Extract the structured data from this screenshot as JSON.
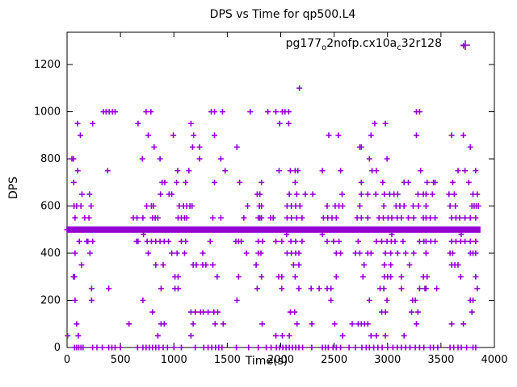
{
  "title": "DPS vs Time for qp500.L4",
  "legend": {
    "label_plain": "pg177_o2nofp.cx10a_c32r128",
    "label_parts": [
      {
        "text": "pg177"
      },
      {
        "text": "o",
        "sub": true
      },
      {
        "text": "2nofp.cx10a"
      },
      {
        "text": "c",
        "sub": true
      },
      {
        "text": "32r128"
      }
    ],
    "marker": "plus"
  },
  "axes": {
    "x": {
      "label": "Time(s)",
      "min": 0,
      "max": 4000,
      "ticks": [
        0,
        500,
        1000,
        1500,
        2000,
        2500,
        3000,
        3500,
        4000
      ]
    },
    "y": {
      "label": "DPS",
      "min": 0,
      "max": 1337,
      "ticks": [
        0,
        200,
        400,
        600,
        800,
        1000,
        1200
      ]
    }
  },
  "colors": {
    "marker": "#9400d3",
    "axis": "#000000",
    "text": "#000000",
    "background": "#ffffff"
  },
  "chart_data": {
    "type": "scatter",
    "title": "DPS vs Time for qp500.L4",
    "xlabel": "Time(s)",
    "ylabel": "DPS",
    "xlim": [
      0,
      4000
    ],
    "ylim": [
      0,
      1337
    ],
    "legend_entry": "pg177_o2nofp.cx10a_c32r128",
    "marker": "plus",
    "marker_color": "#9400d3",
    "grid": false,
    "band": {
      "dps": 500,
      "t_start": 0,
      "t_end": 3870,
      "texture_step": 40,
      "thickness_px": 8,
      "note": "dense horizontal band of overlapping + points at DPS ~500 spanning nearly the whole run"
    },
    "levels": [
      {
        "dps": 1280,
        "t": [
          3711
        ]
      },
      {
        "dps": 1100,
        "t": [
          2175
        ]
      },
      {
        "dps": 1000,
        "t": [
          340,
          365,
          395,
          425,
          450,
          740,
          785,
          1350,
          1380,
          1455,
          1715,
          1880,
          1955,
          2015,
          2040,
          2075,
          3270,
          3300
        ]
      },
      {
        "dps": 950,
        "t": [
          98,
          240,
          665,
          1160,
          1990,
          2075,
          2880,
          2980
        ]
      },
      {
        "dps": 900,
        "t": [
          125,
          760,
          995,
          1185,
          1380,
          2450,
          2540,
          2845,
          3270,
          3600,
          3710
        ]
      },
      {
        "dps": 850,
        "t": [
          815,
          1175,
          1240,
          1590,
          2740,
          2755,
          3775
        ]
      },
      {
        "dps": 800,
        "t": [
          45,
          60,
          705,
          870,
          1240,
          1440,
          2830,
          2995
        ]
      },
      {
        "dps": 750,
        "t": [
          100,
          380,
          1035,
          1140,
          1480,
          1985,
          2090,
          2135,
          2160,
          2390,
          2560,
          2855,
          2895,
          3310,
          3660,
          3725,
          3825
        ]
      },
      {
        "dps": 700,
        "t": [
          63,
          890,
          915,
          1025,
          1110,
          1380,
          1615,
          1820,
          2135,
          2755,
          2955,
          3155,
          3195,
          3370,
          3430,
          3445,
          3610,
          3760
        ]
      },
      {
        "dps": 650,
        "t": [
          140,
          210,
          875,
          955,
          980,
          1780,
          1805,
          2080,
          2150,
          2230,
          2300,
          2575,
          2755,
          2815,
          2890,
          2970,
          3020,
          3060,
          3095,
          3285,
          3335,
          3360,
          3420,
          3575,
          3625,
          3800,
          3840
        ]
      },
      {
        "dps": 600,
        "t": [
          65,
          90,
          130,
          225,
          745,
          790,
          810,
          1050,
          1090,
          1120,
          1150,
          1170,
          1690,
          1800,
          1820,
          2060,
          2100,
          2140,
          2180,
          2435,
          2510,
          2545,
          2580,
          2740,
          2965,
          3080,
          3115,
          3155,
          3240,
          3290,
          3360,
          3585,
          3635,
          3790,
          3810,
          3830,
          3850
        ]
      },
      {
        "dps": 550,
        "t": [
          75,
          165,
          205,
          620,
          655,
          710,
          800,
          825,
          850,
          1040,
          1070,
          1100,
          1120,
          1365,
          1440,
          1655,
          1790,
          1805,
          1820,
          1905,
          1930,
          2060,
          2100,
          2150,
          2200,
          2400,
          2440,
          2480,
          2520,
          2715,
          2755,
          2815,
          2920,
          2960,
          3005,
          3040,
          3090,
          3130,
          3195,
          3245,
          3335,
          3360,
          3400,
          3445,
          3600,
          3640,
          3675,
          3725,
          3775,
          3825
        ]
      },
      {
        "dps": 480,
        "t": [
          715,
          2055,
          2390,
          3040,
          3690
        ]
      },
      {
        "dps": 450,
        "t": [
          115,
          185,
          195,
          240,
          650,
          665,
          750,
          790,
          830,
          870,
          910,
          950,
          1070,
          1110,
          1340,
          1580,
          1605,
          1630,
          1790,
          1830,
          1955,
          2010,
          2095,
          2140,
          2200,
          2435,
          2495,
          2545,
          2725,
          2895,
          2945,
          2995,
          3035,
          3070,
          3145,
          3300,
          3340,
          3360,
          3405,
          3445,
          3600,
          3640,
          3685,
          3725,
          3775,
          3825
        ]
      },
      {
        "dps": 400,
        "t": [
          75,
          215,
          760,
          980,
          1030,
          1100,
          1270,
          1680,
          1790,
          1815,
          2060,
          2100,
          2140,
          2170,
          2520,
          2560,
          2700,
          2740,
          2815,
          2845,
          2980,
          3030,
          3095,
          3170,
          3245,
          3360,
          3585,
          3610,
          3775,
          3800,
          3825
        ]
      },
      {
        "dps": 350,
        "t": [
          135,
          830,
          900,
          1180,
          1210,
          1270,
          1300,
          1365,
          1770,
          2120,
          2170,
          2780,
          2970,
          3030,
          3205,
          3600,
          3630,
          3660
        ]
      },
      {
        "dps": 300,
        "t": [
          60,
          70,
          1010,
          1040,
          1405,
          1605,
          1820,
          1980,
          2010,
          2135,
          2520,
          2770,
          2970,
          3000,
          3030,
          3130,
          3335,
          3370,
          3685,
          3825
        ]
      },
      {
        "dps": 250,
        "t": [
          230,
          390,
          880,
          1010,
          1040,
          1780,
          2010,
          2170,
          2285,
          2360,
          2435,
          2470,
          2930,
          2965,
          3130,
          3300,
          3350,
          3360,
          3460,
          3840
        ]
      },
      {
        "dps": 200,
        "t": [
          75,
          230,
          710,
          1590,
          2470,
          2830,
          2995,
          3235,
          3260,
          3775,
          3800
        ]
      },
      {
        "dps": 150,
        "t": [
          800,
          1160,
          1200,
          1250,
          1275,
          1320,
          1375,
          1410,
          2090,
          2130,
          2945,
          2980,
          3225,
          3285,
          3790
        ]
      },
      {
        "dps": 100,
        "t": [
          90,
          580,
          880,
          910,
          1180,
          1386,
          1462,
          1826,
          2153,
          2291,
          2505,
          2669,
          2725,
          2755,
          2785,
          2815,
          3270,
          3600,
          3710
        ]
      },
      {
        "dps": 50,
        "t": [
          5,
          105,
          850,
          1160,
          1955,
          2015,
          2080,
          2580,
          2845,
          2895,
          2980,
          3155
        ]
      },
      {
        "dps": 0,
        "t": [
          70,
          90,
          110,
          130,
          150,
          240,
          280,
          330,
          390,
          420,
          450,
          500,
          660,
          710,
          740,
          770,
          800,
          830,
          860,
          900,
          940,
          1000,
          1070,
          1200,
          1280,
          1320,
          1355,
          1390,
          1420,
          1450,
          1585,
          1700,
          1790,
          1865,
          1910,
          1960,
          1990,
          2020,
          2050,
          2080,
          2110,
          2140,
          2170,
          2205,
          2290,
          2390,
          2420,
          2445,
          2490,
          2520,
          2560,
          2640,
          2700,
          2760,
          2800,
          2830,
          2870,
          2910,
          2950,
          3000,
          3050,
          3090,
          3130,
          3170,
          3210,
          3260,
          3300,
          3340,
          3400,
          3430,
          3470,
          3585,
          3620,
          3660,
          3690,
          3740,
          3800,
          3825
        ]
      }
    ]
  }
}
